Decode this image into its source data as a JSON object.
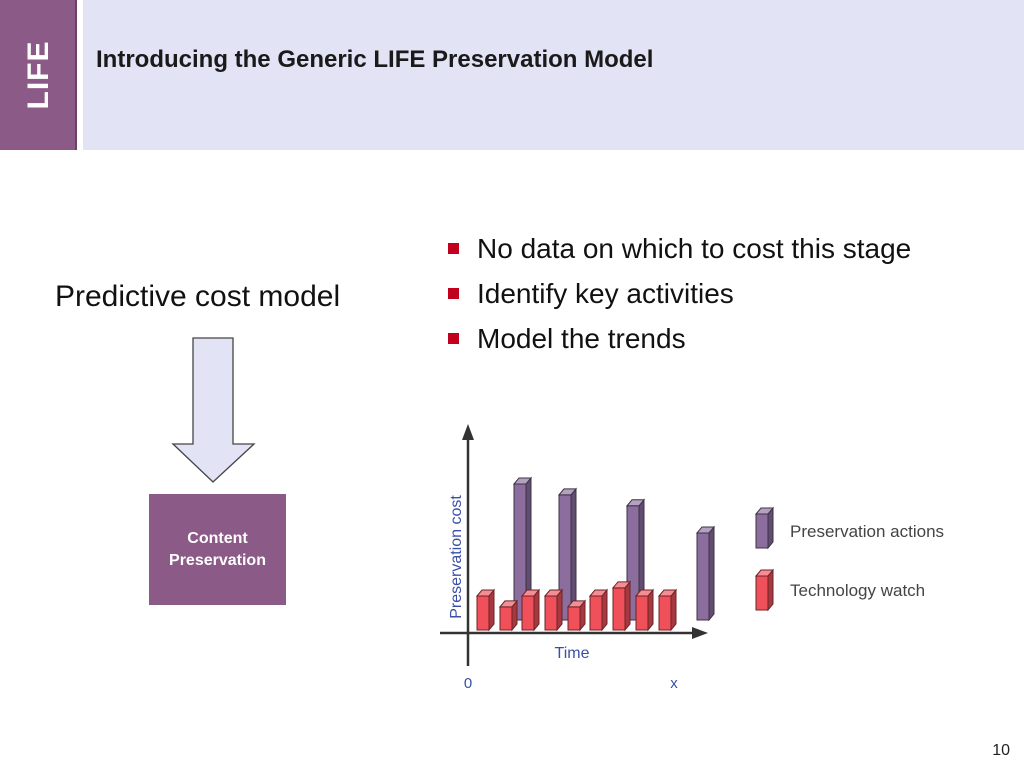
{
  "side_tab": {
    "label": "LIFE"
  },
  "header": {
    "title": "Introducing the Generic LIFE Preservation Model"
  },
  "left_panel": {
    "label": "Predictive cost model",
    "box_label_line1": "Content",
    "box_label_line2": "Preservation"
  },
  "bullets": [
    {
      "text": "No data on which to cost this stage"
    },
    {
      "text": "Identify key activities"
    },
    {
      "text": "Model the trends"
    }
  ],
  "chart_data": {
    "type": "bar",
    "ylabel": "Preservation cost",
    "xlabel": "Time",
    "x_tick_start": "0",
    "x_tick_end": "x",
    "series": [
      {
        "name": "Preservation actions",
        "color": "#8b6e9e",
        "bars": [
          {
            "slot": 1,
            "value": 1.0
          },
          {
            "slot": 3,
            "value": 0.92
          },
          {
            "slot": 6,
            "value": 0.84
          },
          {
            "slot": 9,
            "value": 0.64
          }
        ]
      },
      {
        "name": "Technology watch",
        "color": "#f0505a",
        "bars": [
          {
            "slot": 0,
            "value": 0.25
          },
          {
            "slot": 1,
            "value": 0.17
          },
          {
            "slot": 2,
            "value": 0.25
          },
          {
            "slot": 3,
            "value": 0.25
          },
          {
            "slot": 4,
            "value": 0.17
          },
          {
            "slot": 5,
            "value": 0.25
          },
          {
            "slot": 6,
            "value": 0.31
          },
          {
            "slot": 7,
            "value": 0.25
          },
          {
            "slot": 8,
            "value": 0.25
          }
        ]
      }
    ],
    "legend": "right"
  },
  "page_number": "10",
  "colors": {
    "accent": "#8b5a86",
    "header_band": "#e3e3f6",
    "bullet": "#c0001c"
  }
}
